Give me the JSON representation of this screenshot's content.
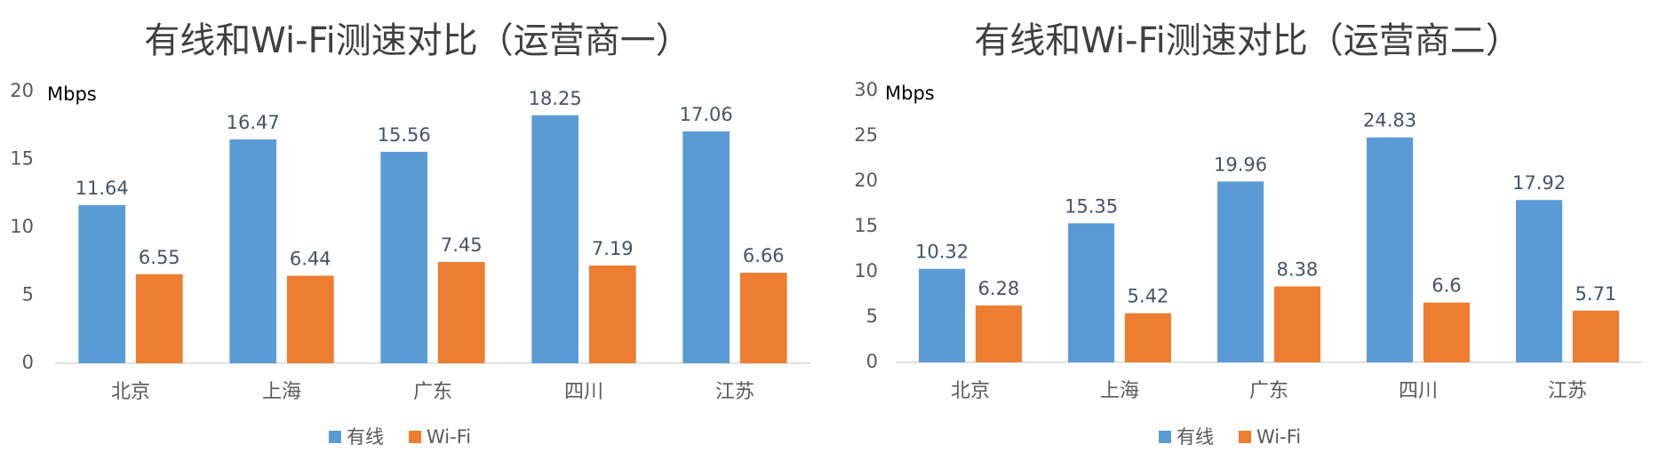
{
  "chart_data": [
    {
      "type": "bar",
      "title": "有线和Wi-Fi测速对比（运营商一）",
      "y_unit": "Mbps",
      "categories": [
        "北京",
        "上海",
        "广东",
        "四川",
        "江苏"
      ],
      "series": [
        {
          "name": "有线",
          "color": "#5b9bd5",
          "values": [
            11.64,
            16.47,
            15.56,
            18.25,
            17.06
          ]
        },
        {
          "name": "Wi-Fi",
          "color": "#ed7d31",
          "values": [
            6.55,
            6.44,
            7.45,
            7.19,
            6.66
          ]
        }
      ],
      "ylim": [
        0,
        20
      ],
      "yticks": [
        0,
        5,
        10,
        15,
        20
      ],
      "grid": false,
      "legend": "bottom"
    },
    {
      "type": "bar",
      "title": "有线和Wi-Fi测速对比（运营商二）",
      "y_unit": "Mbps",
      "categories": [
        "北京",
        "上海",
        "广东",
        "四川",
        "江苏"
      ],
      "series": [
        {
          "name": "有线",
          "color": "#5b9bd5",
          "values": [
            10.32,
            15.35,
            19.96,
            24.83,
            17.92
          ]
        },
        {
          "name": "Wi-Fi",
          "color": "#ed7d31",
          "values": [
            6.28,
            5.42,
            8.38,
            6.6,
            5.71
          ]
        }
      ],
      "ylim": [
        0,
        30
      ],
      "yticks": [
        0,
        5,
        10,
        15,
        20,
        25,
        30
      ],
      "grid": false,
      "legend": "bottom"
    }
  ]
}
